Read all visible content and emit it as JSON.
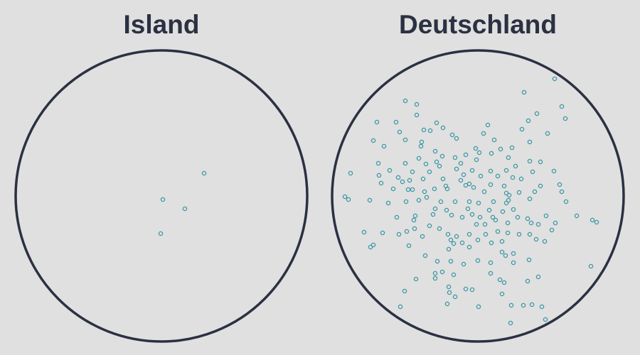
{
  "colors": {
    "background": "#e0e0e0",
    "outline": "#2b3142",
    "dot": "#3a97a3",
    "title": "#2b3142"
  },
  "panels": [
    {
      "title": "Island",
      "dots": [
        [
          287,
          244
        ],
        [
          229,
          281
        ],
        [
          260,
          294
        ],
        [
          226,
          329
        ]
      ]
    },
    {
      "title": "Deutschland",
      "dots": [
        [
          780,
          111
        ],
        [
          737,
          130
        ],
        [
          570,
          142
        ],
        [
          586,
          147
        ],
        [
          790,
          150
        ],
        [
          755,
          160
        ],
        [
          586,
          162
        ],
        [
          795,
          167
        ],
        [
          530,
          172
        ],
        [
          557,
          172
        ],
        [
          614,
          173
        ],
        [
          686,
          176
        ],
        [
          743,
          170
        ],
        [
          596,
          183
        ],
        [
          605,
          184
        ],
        [
          623,
          180
        ],
        [
          562,
          186
        ],
        [
          680,
          188
        ],
        [
          734,
          182
        ],
        [
          770,
          188
        ],
        [
          636,
          190
        ],
        [
          525,
          198
        ],
        [
          642,
          195
        ],
        [
          593,
          200
        ],
        [
          570,
          197
        ],
        [
          695,
          197
        ],
        [
          745,
          200
        ],
        [
          540,
          206
        ],
        [
          592,
          206
        ],
        [
          669,
          209
        ],
        [
          720,
          208
        ],
        [
          704,
          210
        ],
        [
          612,
          213
        ],
        [
          622,
          220
        ],
        [
          655,
          218
        ],
        [
          674,
          215
        ],
        [
          691,
          216
        ],
        [
          589,
          223
        ],
        [
          640,
          222
        ],
        [
          670,
          225
        ],
        [
          715,
          222
        ],
        [
          745,
          227
        ],
        [
          532,
          230
        ],
        [
          570,
          230
        ],
        [
          599,
          231
        ],
        [
          614,
          228
        ],
        [
          618,
          234
        ],
        [
          648,
          230
        ],
        [
          725,
          234
        ],
        [
          760,
          228
        ],
        [
          493,
          244
        ],
        [
          548,
          240
        ],
        [
          533,
          247
        ],
        [
          580,
          242
        ],
        [
          604,
          242
        ],
        [
          642,
          238
        ],
        [
          652,
          246
        ],
        [
          664,
          240
        ],
        [
          690,
          241
        ],
        [
          712,
          240
        ],
        [
          749,
          242
        ],
        [
          779,
          241
        ],
        [
          560,
          250
        ],
        [
          576,
          254
        ],
        [
          566,
          256
        ],
        [
          595,
          252
        ],
        [
          623,
          252
        ],
        [
          648,
          254
        ],
        [
          660,
          259
        ],
        [
          676,
          248
        ],
        [
          700,
          248
        ],
        [
          721,
          250
        ],
        [
          733,
          252
        ],
        [
          536,
          258
        ],
        [
          627,
          262
        ],
        [
          655,
          261
        ],
        [
          690,
          260
        ],
        [
          709,
          262
        ],
        [
          760,
          262
        ],
        [
          787,
          260
        ],
        [
          553,
          266
        ],
        [
          574,
          267
        ],
        [
          580,
          267
        ],
        [
          597,
          270
        ],
        [
          611,
          266
        ],
        [
          629,
          266
        ],
        [
          666,
          264
        ],
        [
          681,
          270
        ],
        [
          712,
          272
        ],
        [
          716,
          275
        ],
        [
          730,
          271
        ],
        [
          752,
          270
        ],
        [
          790,
          270
        ],
        [
          485,
          277
        ],
        [
          490,
          281
        ],
        [
          520,
          282
        ],
        [
          546,
          286
        ],
        [
          571,
          284
        ],
        [
          589,
          282
        ],
        [
          600,
          278
        ],
        [
          620,
          284
        ],
        [
          640,
          284
        ],
        [
          660,
          284
        ],
        [
          673,
          286
        ],
        [
          694,
          284
        ],
        [
          712,
          286
        ],
        [
          715,
          282
        ],
        [
          745,
          280
        ],
        [
          796,
          284
        ],
        [
          612,
          294
        ],
        [
          628,
          296
        ],
        [
          658,
          294
        ],
        [
          688,
          296
        ],
        [
          707,
          298
        ],
        [
          722,
          295
        ],
        [
          558,
          306
        ],
        [
          584,
          304
        ],
        [
          609,
          302
        ],
        [
          635,
          303
        ],
        [
          650,
          306
        ],
        [
          664,
          302
        ],
        [
          675,
          306
        ],
        [
          693,
          306
        ],
        [
          728,
          306
        ],
        [
          742,
          308
        ],
        [
          768,
          304
        ],
        [
          582,
          310
        ],
        [
          670,
          316
        ],
        [
          682,
          316
        ],
        [
          697,
          310
        ],
        [
          714,
          314
        ],
        [
          747,
          314
        ],
        [
          757,
          316
        ],
        [
          781,
          314
        ],
        [
          811,
          304
        ],
        [
          833,
          310
        ],
        [
          839,
          313
        ],
        [
          512,
          327
        ],
        [
          538,
          328
        ],
        [
          561,
          330
        ],
        [
          572,
          326
        ],
        [
          583,
          322
        ],
        [
          594,
          333
        ],
        [
          604,
          318
        ],
        [
          618,
          322
        ],
        [
          630,
          330
        ],
        [
          642,
          333
        ],
        [
          660,
          330
        ],
        [
          683,
          330
        ],
        [
          700,
          326
        ],
        [
          714,
          328
        ],
        [
          730,
          330
        ],
        [
          745,
          330
        ],
        [
          776,
          324
        ],
        [
          525,
          345
        ],
        [
          521,
          348
        ],
        [
          575,
          346
        ],
        [
          634,
          338
        ],
        [
          638,
          343
        ],
        [
          650,
          342
        ],
        [
          672,
          338
        ],
        [
          691,
          342
        ],
        [
          706,
          340
        ],
        [
          766,
          340
        ],
        [
          754,
          337
        ],
        [
          631,
          351
        ],
        [
          660,
          348
        ],
        [
          706,
          355
        ],
        [
          711,
          360
        ],
        [
          722,
          357
        ],
        [
          598,
          360
        ],
        [
          615,
          368
        ],
        [
          634,
          368
        ],
        [
          652,
          372
        ],
        [
          672,
          367
        ],
        [
          690,
          370
        ],
        [
          722,
          370
        ],
        [
          744,
          366
        ],
        [
          612,
          385
        ],
        [
          622,
          383
        ],
        [
          638,
          387
        ],
        [
          690,
          385
        ],
        [
          703,
          394
        ],
        [
          709,
          398
        ],
        [
          831,
          375
        ],
        [
          757,
          390
        ],
        [
          585,
          393
        ],
        [
          612,
          392
        ],
        [
          631,
          404
        ],
        [
          632,
          412
        ],
        [
          655,
          407
        ],
        [
          664,
          408
        ],
        [
          706,
          414
        ],
        [
          742,
          396
        ],
        [
          569,
          410
        ],
        [
          640,
          418
        ],
        [
          629,
          428
        ],
        [
          673,
          432
        ],
        [
          719,
          430
        ],
        [
          736,
          430
        ],
        [
          748,
          429
        ],
        [
          762,
          432
        ],
        [
          563,
          432
        ],
        [
          767,
          450
        ],
        [
          718,
          455
        ]
      ]
    }
  ]
}
